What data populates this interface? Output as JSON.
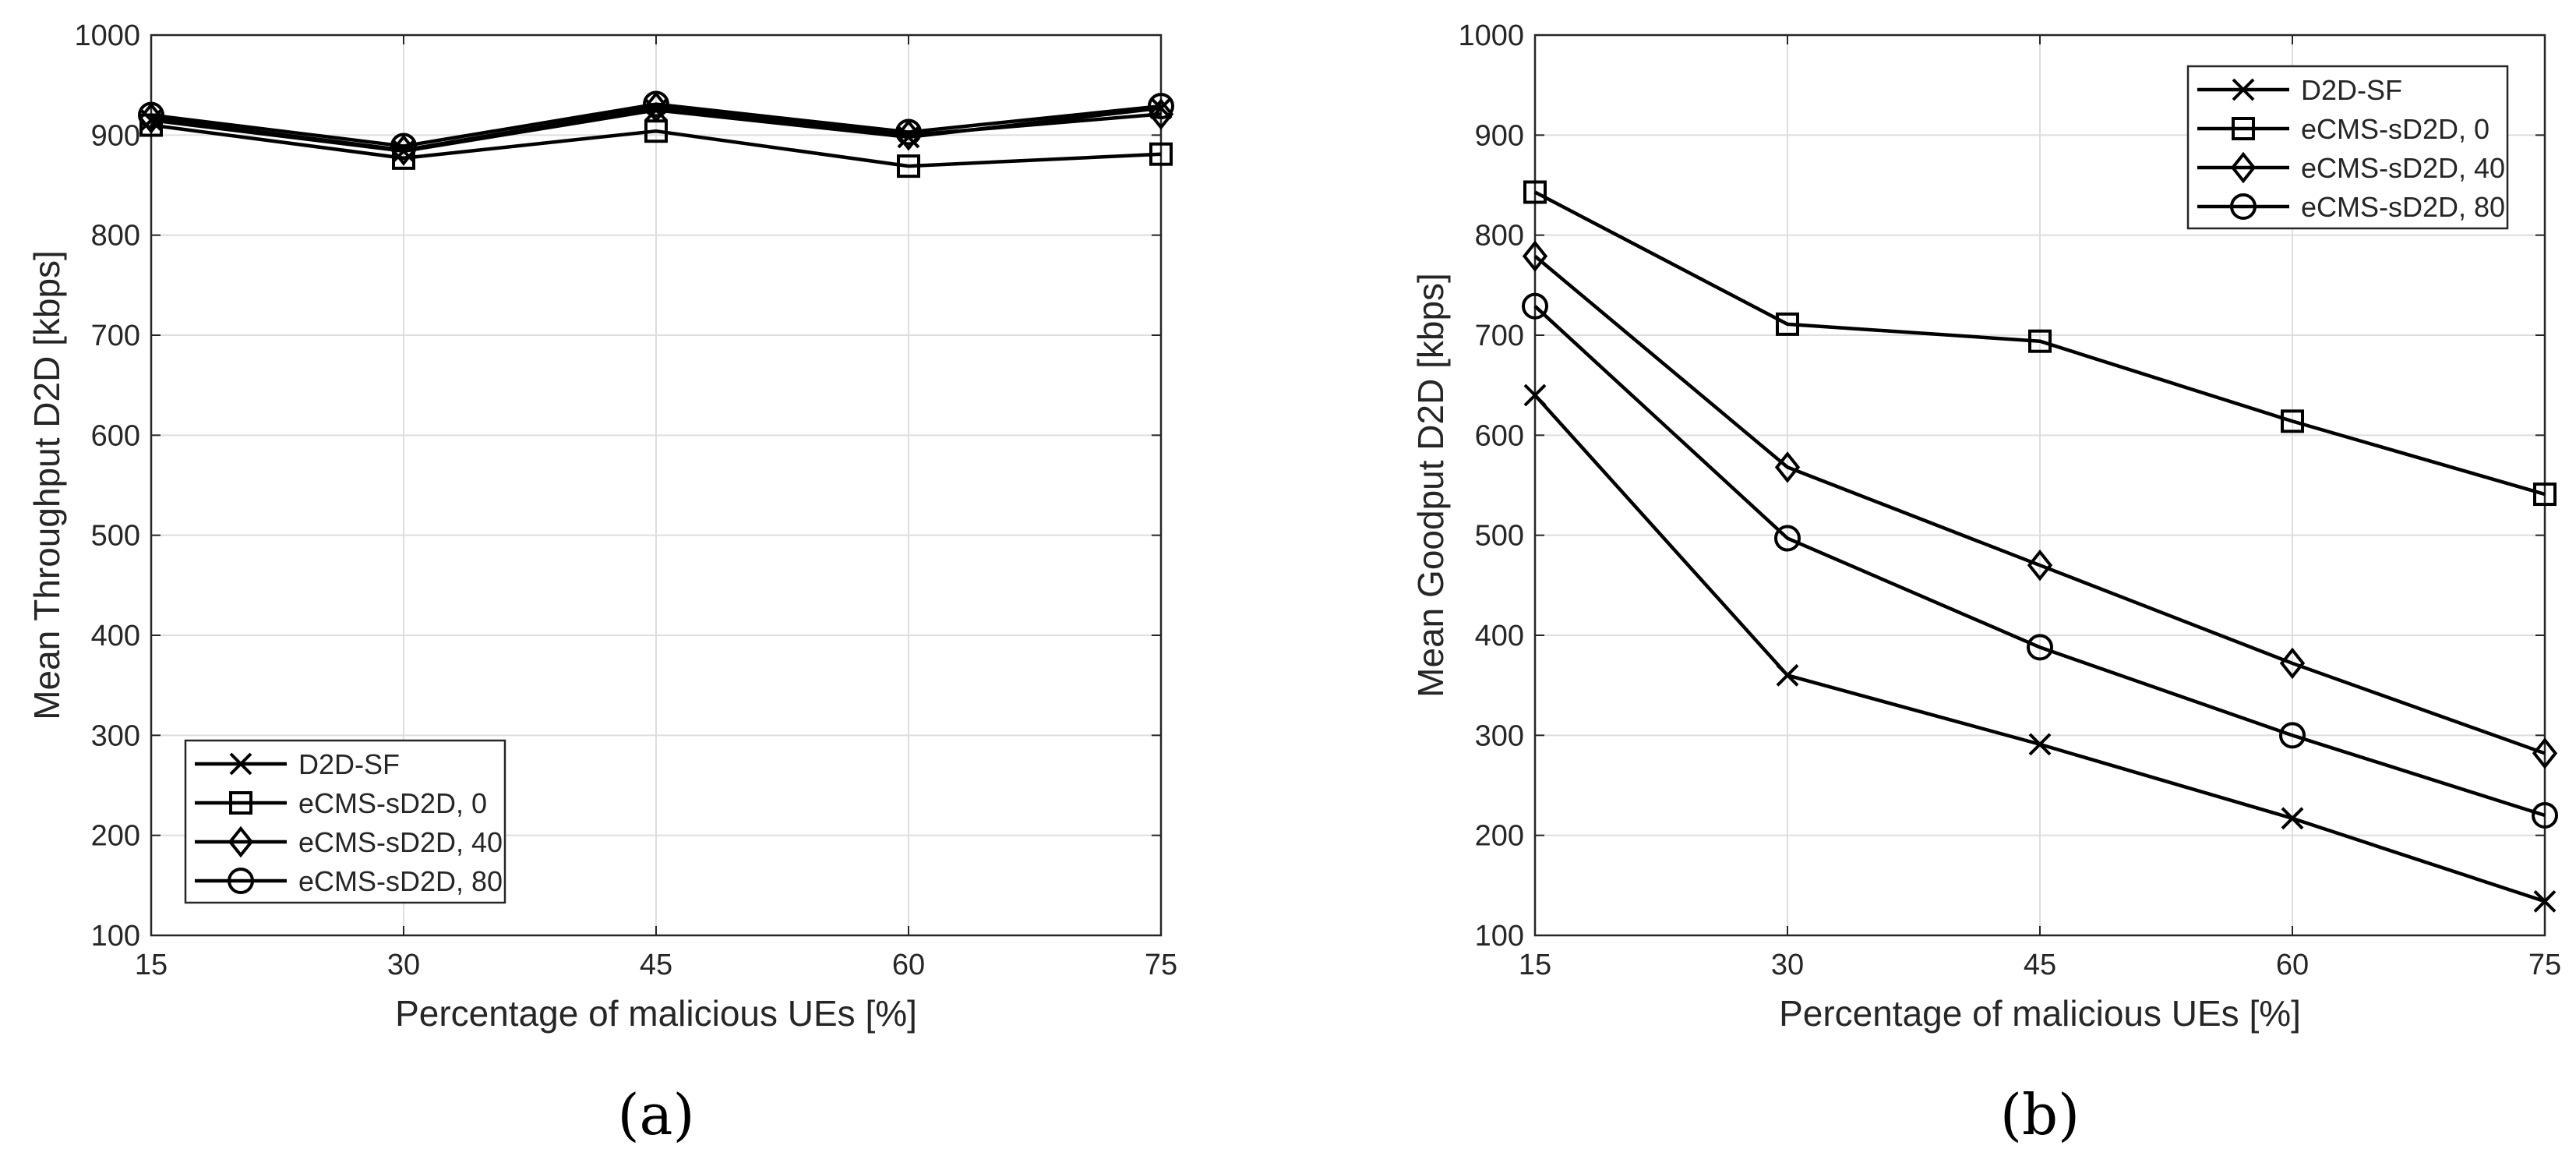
{
  "chart_data": [
    {
      "type": "line",
      "panel_label": "(a)",
      "xlabel": "Percentage of malicious UEs [%]",
      "ylabel": "Mean Throughput D2D [kbps]",
      "x": [
        15,
        30,
        45,
        60,
        75
      ],
      "xlim": [
        15,
        75
      ],
      "ylim": [
        100,
        1000
      ],
      "xticks": [
        "15",
        "30",
        "45",
        "60",
        "75"
      ],
      "yticks": [
        "100",
        "200",
        "300",
        "400",
        "500",
        "600",
        "700",
        "800",
        "900",
        "1000"
      ],
      "grid": true,
      "legend_position": "bottom-left",
      "series": [
        {
          "name": "D2D-SF",
          "marker": "x",
          "values": [
            915,
            884,
            925,
            898,
            927
          ]
        },
        {
          "name": "eCMS-sD2D, 0",
          "marker": "square",
          "values": [
            910,
            877,
            904,
            869,
            881
          ]
        },
        {
          "name": "eCMS-sD2D, 40",
          "marker": "diamond",
          "values": [
            917,
            885,
            928,
            900,
            921
          ]
        },
        {
          "name": "eCMS-sD2D, 80",
          "marker": "circle",
          "values": [
            920,
            889,
            931,
            903,
            929
          ]
        }
      ]
    },
    {
      "type": "line",
      "panel_label": "(b)",
      "xlabel": "Percentage of malicious UEs [%]",
      "ylabel": "Mean Goodput D2D [kbps]",
      "x": [
        15,
        30,
        45,
        60,
        75
      ],
      "xlim": [
        15,
        75
      ],
      "ylim": [
        100,
        1000
      ],
      "xticks": [
        "15",
        "30",
        "45",
        "60",
        "75"
      ],
      "yticks": [
        "100",
        "200",
        "300",
        "400",
        "500",
        "600",
        "700",
        "800",
        "900",
        "1000"
      ],
      "grid": true,
      "legend_position": "top-right",
      "series": [
        {
          "name": "D2D-SF",
          "marker": "x",
          "values": [
            640,
            360,
            291,
            217,
            134
          ]
        },
        {
          "name": "eCMS-sD2D, 0",
          "marker": "square",
          "values": [
            843,
            711,
            694,
            614,
            541
          ]
        },
        {
          "name": "eCMS-sD2D, 40",
          "marker": "diamond",
          "values": [
            779,
            568,
            470,
            372,
            282
          ]
        },
        {
          "name": "eCMS-sD2D, 80",
          "marker": "circle",
          "values": [
            729,
            497,
            388,
            300,
            220
          ]
        }
      ]
    }
  ]
}
